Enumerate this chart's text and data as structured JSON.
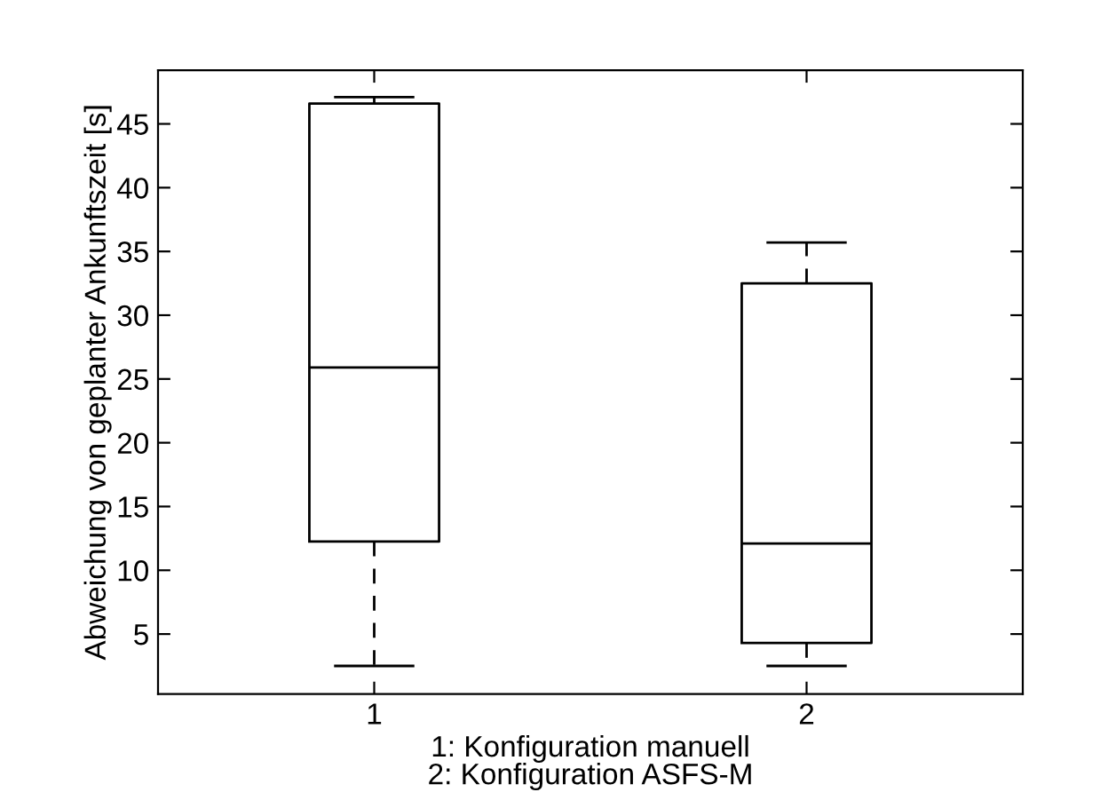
{
  "chart_data": {
    "type": "box",
    "categories": [
      "1",
      "2"
    ],
    "xlabel": "1: Konfiguration manuell\n2: Konfiguration ASFS-M",
    "ylabel": "Abweichung von geplanter Ankunftszeit [s]",
    "boxes": [
      {
        "low": 2.5,
        "q1": 12.25,
        "median": 25.9,
        "q3": 46.6,
        "high": 47.1
      },
      {
        "low": 2.5,
        "q1": 4.3,
        "median": 12.1,
        "q3": 32.5,
        "high": 35.7
      }
    ],
    "ylim": [
      0.3,
      49.2
    ],
    "yticks": [
      5,
      10,
      15,
      20,
      25,
      30,
      35,
      40,
      45
    ],
    "line_style": "dashed",
    "grid": false
  }
}
